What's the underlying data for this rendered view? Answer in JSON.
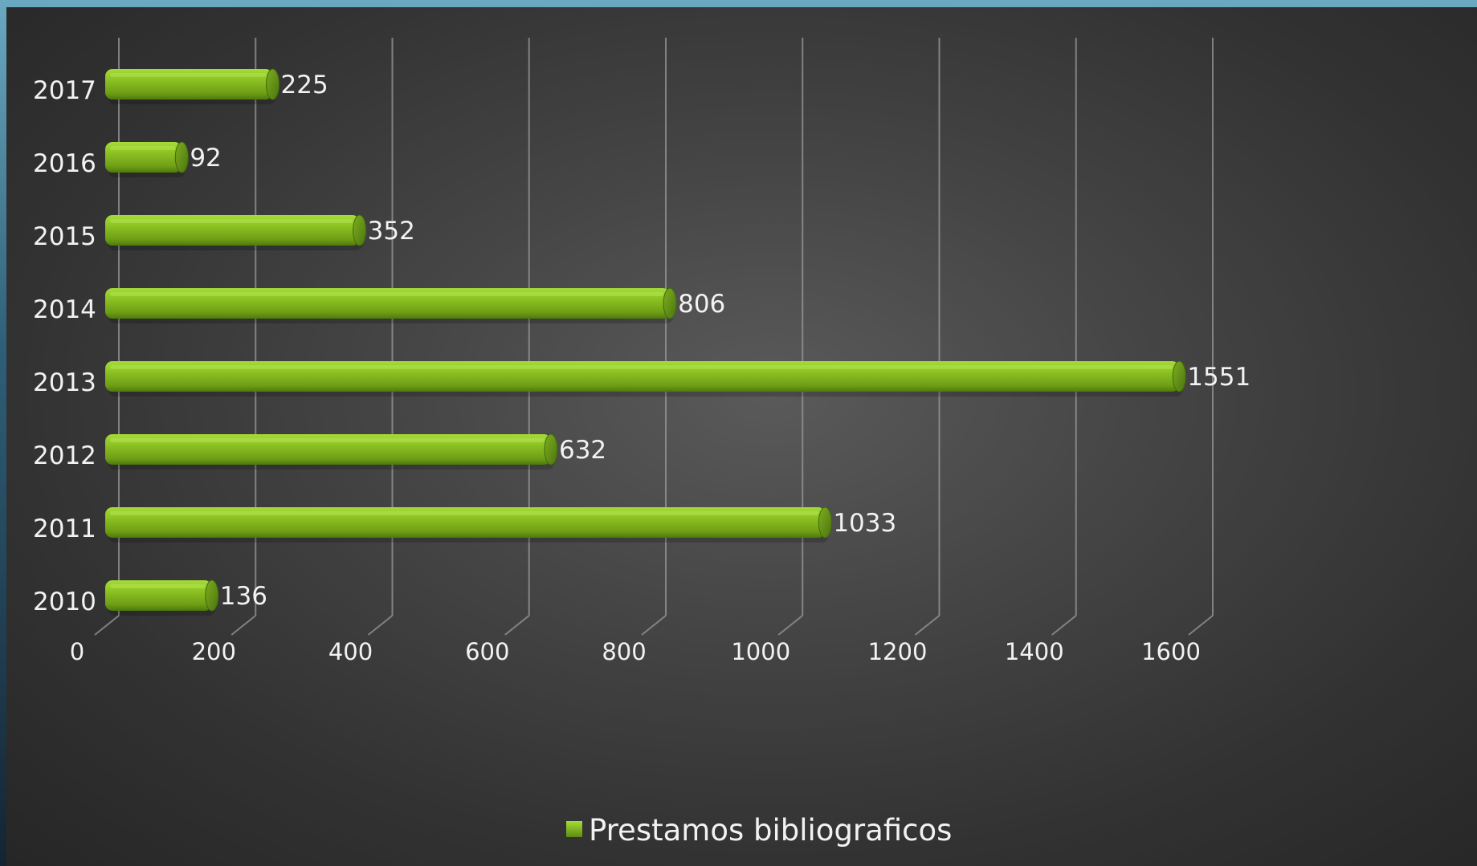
{
  "chart_data": {
    "type": "bar",
    "orientation": "horizontal",
    "style": "3d-cylinder",
    "categories": [
      "2010",
      "2011",
      "2012",
      "2013",
      "2014",
      "2015",
      "2016",
      "2017"
    ],
    "series": [
      {
        "name": "Prestamos bibliograficos",
        "values": [
          136,
          1033,
          632,
          1551,
          806,
          352,
          92,
          225
        ],
        "color": "#8cc220"
      }
    ],
    "xlim": [
      0,
      1600
    ],
    "xticks": [
      0,
      200,
      400,
      600,
      800,
      1000,
      1200,
      1400,
      1600
    ],
    "grid": true,
    "legend_position": "bottom",
    "data_labels": true
  },
  "colors": {
    "background_dark": "#2b2b2b",
    "background_light": "#5a5a5a",
    "bar_light": "#9fd62e",
    "bar_mid": "#86bd22",
    "bar_dark": "#4e7a0e",
    "text": "#f2f2f2",
    "gridline": "#9a9a9a"
  }
}
